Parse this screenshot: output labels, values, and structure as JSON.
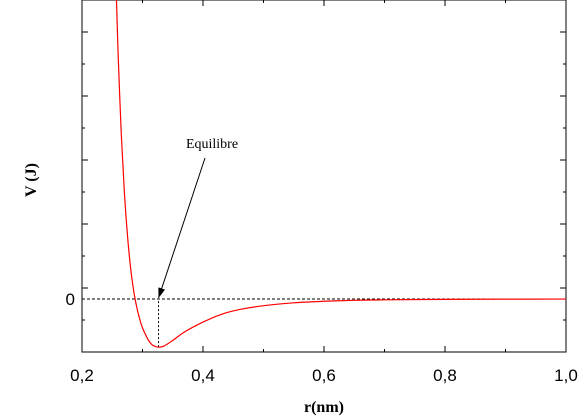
{
  "chart_data": {
    "type": "line",
    "title": "",
    "xlabel": "r(nm)",
    "ylabel": "V (J)",
    "xlim": [
      0.2,
      1.0
    ],
    "ylim": [
      -0.55,
      3.1
    ],
    "x_ticks": [
      {
        "value": 0.2,
        "label": "0,2"
      },
      {
        "value": 0.4,
        "label": "0,4"
      },
      {
        "value": 0.6,
        "label": "0,6"
      },
      {
        "value": 0.8,
        "label": "0,8"
      },
      {
        "value": 1.0,
        "label": "1,0"
      }
    ],
    "y_ticks": [
      {
        "value": 0,
        "label": "0"
      }
    ],
    "zero_line": {
      "y": 0,
      "style": "dashed"
    },
    "annotation": {
      "text": "Equilibre",
      "x": 0.3265,
      "y": 0
    },
    "equilibrium_marker": {
      "x": 0.3265,
      "y_from": -0.5,
      "y_to": 0,
      "style": "dashed"
    },
    "series": [
      {
        "color": "#ff0000",
        "x": [
          0.257,
          0.26,
          0.265,
          0.27,
          0.275,
          0.28,
          0.285,
          0.29,
          0.295,
          0.3,
          0.305,
          0.31,
          0.315,
          0.32,
          0.3265,
          0.335,
          0.35,
          0.37,
          0.4,
          0.43,
          0.46,
          0.5,
          0.55,
          0.6,
          0.65,
          0.7,
          0.8,
          0.9,
          1.0
        ],
        "y": [
          3.1,
          2.49,
          1.7,
          1.11,
          0.67,
          0.34,
          0.1,
          -0.07,
          -0.2,
          -0.3,
          -0.37,
          -0.43,
          -0.47,
          -0.49,
          -0.5,
          -0.49,
          -0.43,
          -0.34,
          -0.24,
          -0.16,
          -0.11,
          -0.07,
          -0.04,
          -0.024,
          -0.014,
          -0.009,
          -0.004,
          -0.002,
          -0.001
        ]
      }
    ]
  }
}
